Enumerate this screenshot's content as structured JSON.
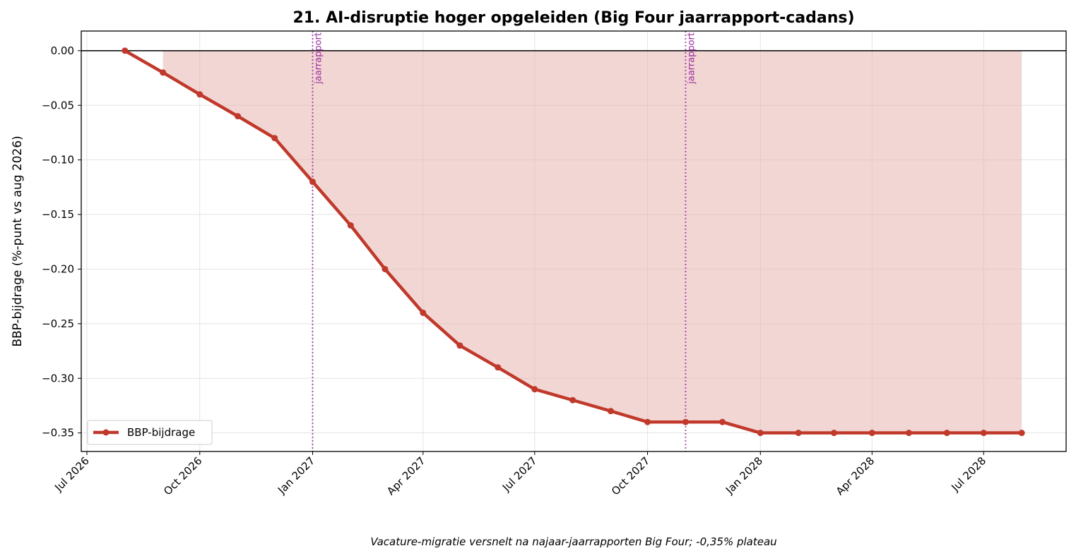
{
  "chart_data": {
    "type": "line",
    "title": "21. AI-disruptie hoger opgeleiden (Big Four jaarrapport-cadans)",
    "ylabel": "BBP-bijdrage (%-punt vs aug 2026)",
    "footnote": "Vacature-migratie versnelt na najaar-jaarrapporten Big Four; -0,35% plateau",
    "x": [
      "2026-08",
      "2026-09",
      "2026-10",
      "2026-11",
      "2026-12",
      "2027-01",
      "2027-02",
      "2027-03",
      "2027-04",
      "2027-05",
      "2027-06",
      "2027-07",
      "2027-08",
      "2027-09",
      "2027-10",
      "2027-11",
      "2027-12",
      "2028-01",
      "2028-02",
      "2028-03",
      "2028-04",
      "2028-05",
      "2028-06",
      "2028-07",
      "2028-08"
    ],
    "series": [
      {
        "name": "BBP-bijdrage",
        "color": "#c0392b",
        "fill_color": "#e8b4b1",
        "values": [
          0,
          -0.02,
          -0.04,
          -0.06,
          -0.08,
          -0.12,
          -0.16,
          -0.2,
          -0.24,
          -0.27,
          -0.29,
          -0.31,
          -0.32,
          -0.33,
          -0.34,
          -0.34,
          -0.34,
          -0.35,
          -0.35,
          -0.35,
          -0.35,
          -0.35,
          -0.35,
          -0.35,
          -0.35
        ]
      }
    ],
    "hline": 0,
    "annotations": [
      {
        "x": "2027-01",
        "label": "jaarrapport"
      },
      {
        "x": "2027-11",
        "label": "jaarrapport"
      }
    ],
    "annotation_color": "#9b2fa0",
    "xlim": [
      "2026-07",
      "2028-09"
    ],
    "xticks": [
      {
        "value": "2026-07",
        "label": "Jul 2026"
      },
      {
        "value": "2026-10",
        "label": "Oct 2026"
      },
      {
        "value": "2027-01",
        "label": "Jan 2027"
      },
      {
        "value": "2027-04",
        "label": "Apr 2027"
      },
      {
        "value": "2027-07",
        "label": "Jul 2027"
      },
      {
        "value": "2027-10",
        "label": "Oct 2027"
      },
      {
        "value": "2028-01",
        "label": "Jan 2028"
      },
      {
        "value": "2028-04",
        "label": "Apr 2028"
      },
      {
        "value": "2028-07",
        "label": "Jul 2028"
      }
    ],
    "ylim": [
      -0.367,
      0.018
    ],
    "yticks": [
      {
        "value": 0,
        "label": "0.00"
      },
      {
        "value": -0.05,
        "label": "−0.05"
      },
      {
        "value": -0.1,
        "label": "−0.10"
      },
      {
        "value": -0.15,
        "label": "−0.15"
      },
      {
        "value": -0.2,
        "label": "−0.20"
      },
      {
        "value": -0.25,
        "label": "−0.25"
      },
      {
        "value": -0.3,
        "label": "−0.30"
      },
      {
        "value": -0.35,
        "label": "−0.35"
      }
    ],
    "grid": true,
    "legend": "lower left"
  }
}
